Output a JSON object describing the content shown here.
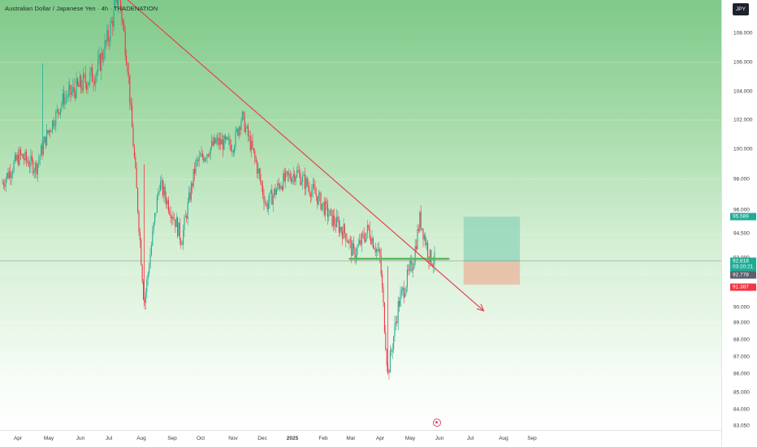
{
  "title": "Australian Dollar / Japanese Yen · 4h · TRADENATION",
  "currency": "JPY",
  "colors": {
    "up": "#22ab94",
    "down": "#f23645",
    "trendline": "#e8424f",
    "support": "#5cb85c",
    "target_zone": "#8fd4b9",
    "stop_zone": "#e9bba3"
  },
  "price_tags": {
    "target": "95.589",
    "current": "92.818",
    "countdown": "03:20:21",
    "entry": "92.778",
    "stop": "91.387"
  },
  "price_axis": [
    "108.000",
    "106.000",
    "104.000",
    "102.000",
    "100.000",
    "98.000",
    "96.000",
    "94.500",
    "93.000",
    "92.000",
    "90.000",
    "89.000",
    "88.000",
    "87.000",
    "86.000",
    "85.000",
    "84.000",
    "83.050"
  ],
  "time_axis": [
    "Apr",
    "May",
    "Jun",
    "Jul",
    "Aug",
    "Sep",
    "Oct",
    "Nov",
    "Dec",
    "2025",
    "Feb",
    "Mar",
    "Apr",
    "May",
    "Jun",
    "Jul",
    "Aug",
    "Sep"
  ],
  "chart_data": {
    "type": "candlestick",
    "symbol": "AUDJPY",
    "interval": "4h",
    "approx_close_path": [
      {
        "date": "2024-03-25",
        "price": 97.8
      },
      {
        "date": "2024-04-10",
        "price": 99.6
      },
      {
        "date": "2024-04-25",
        "price": 98.8
      },
      {
        "date": "2024-05-05",
        "price": 101.0
      },
      {
        "date": "2024-05-20",
        "price": 103.5
      },
      {
        "date": "2024-06-05",
        "price": 104.3
      },
      {
        "date": "2024-06-20",
        "price": 105.0
      },
      {
        "date": "2024-07-01",
        "price": 106.8
      },
      {
        "date": "2024-07-11",
        "price": 108.9
      },
      {
        "date": "2024-07-20",
        "price": 105.2
      },
      {
        "date": "2024-08-05",
        "price": 90.2
      },
      {
        "date": "2024-08-20",
        "price": 97.8
      },
      {
        "date": "2024-09-05",
        "price": 95.3
      },
      {
        "date": "2024-09-11",
        "price": 94.1
      },
      {
        "date": "2024-09-25",
        "price": 99.0
      },
      {
        "date": "2024-10-15",
        "price": 100.5
      },
      {
        "date": "2024-11-01",
        "price": 100.3
      },
      {
        "date": "2024-11-10",
        "price": 102.3
      },
      {
        "date": "2024-11-25",
        "price": 99.0
      },
      {
        "date": "2024-12-05",
        "price": 96.3
      },
      {
        "date": "2024-12-20",
        "price": 97.8
      },
      {
        "date": "2025-01-05",
        "price": 98.5
      },
      {
        "date": "2025-01-25",
        "price": 97.0
      },
      {
        "date": "2025-02-10",
        "price": 95.5
      },
      {
        "date": "2025-02-25",
        "price": 94.5
      },
      {
        "date": "2025-03-05",
        "price": 93.2
      },
      {
        "date": "2025-03-20",
        "price": 94.8
      },
      {
        "date": "2025-04-01",
        "price": 93.0
      },
      {
        "date": "2025-04-09",
        "price": 86.0
      },
      {
        "date": "2025-04-20",
        "price": 90.2
      },
      {
        "date": "2025-05-05",
        "price": 92.8
      },
      {
        "date": "2025-05-12",
        "price": 95.5
      },
      {
        "date": "2025-05-22",
        "price": 93.0
      },
      {
        "date": "2025-05-28",
        "price": 92.8
      }
    ],
    "trendline": {
      "from": {
        "date": "2024-07-11",
        "price": 108.9
      },
      "to": {
        "date": "2025-07-15",
        "price": 89.8
      }
    },
    "support_level": {
      "price": 92.95,
      "from": "2025-03-01",
      "to": "2025-06-10"
    },
    "position": {
      "entry": 92.778,
      "target": 95.589,
      "stop": 91.387,
      "from": "2025-06-25",
      "to": "2025-08-20"
    },
    "last_price": 92.818
  }
}
